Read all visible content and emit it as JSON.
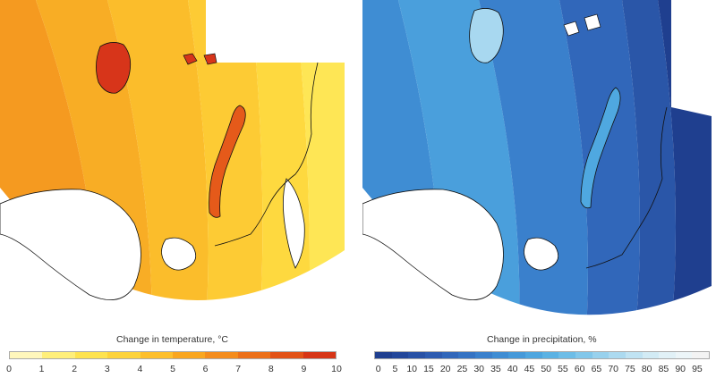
{
  "temperature_map": {
    "legend_title": "Change in temperature, °C",
    "ticks": [
      "0",
      "1",
      "2",
      "3",
      "4",
      "5",
      "6",
      "7",
      "8",
      "9",
      "10"
    ],
    "colors": [
      "#fff7bc",
      "#ffef7a",
      "#fee34f",
      "#fdd33b",
      "#fdbf2c",
      "#f9a61f",
      "#f48c1c",
      "#ec7019",
      "#e25217",
      "#d73516"
    ]
  },
  "precipitation_map": {
    "legend_title": "Change in precipitation, %",
    "ticks": [
      "0",
      "5",
      "10",
      "15",
      "20",
      "25",
      "30",
      "35",
      "40",
      "45",
      "50",
      "55",
      "60",
      "65",
      "70",
      "75",
      "80",
      "85",
      "90",
      "95"
    ],
    "colors": [
      "#1f3f8f",
      "#23479a",
      "#2851a5",
      "#2d5bb0",
      "#3167ba",
      "#3573c3",
      "#3a80cc",
      "#3f8dd3",
      "#4599d9",
      "#4ea6df",
      "#5bb2e3",
      "#6dbde7",
      "#82c7ea",
      "#98d1ed",
      "#acdaf0",
      "#c0e3f3",
      "#d2ebf5",
      "#e1f1f7",
      "#ecf5f8",
      "#f3f3f3"
    ]
  }
}
